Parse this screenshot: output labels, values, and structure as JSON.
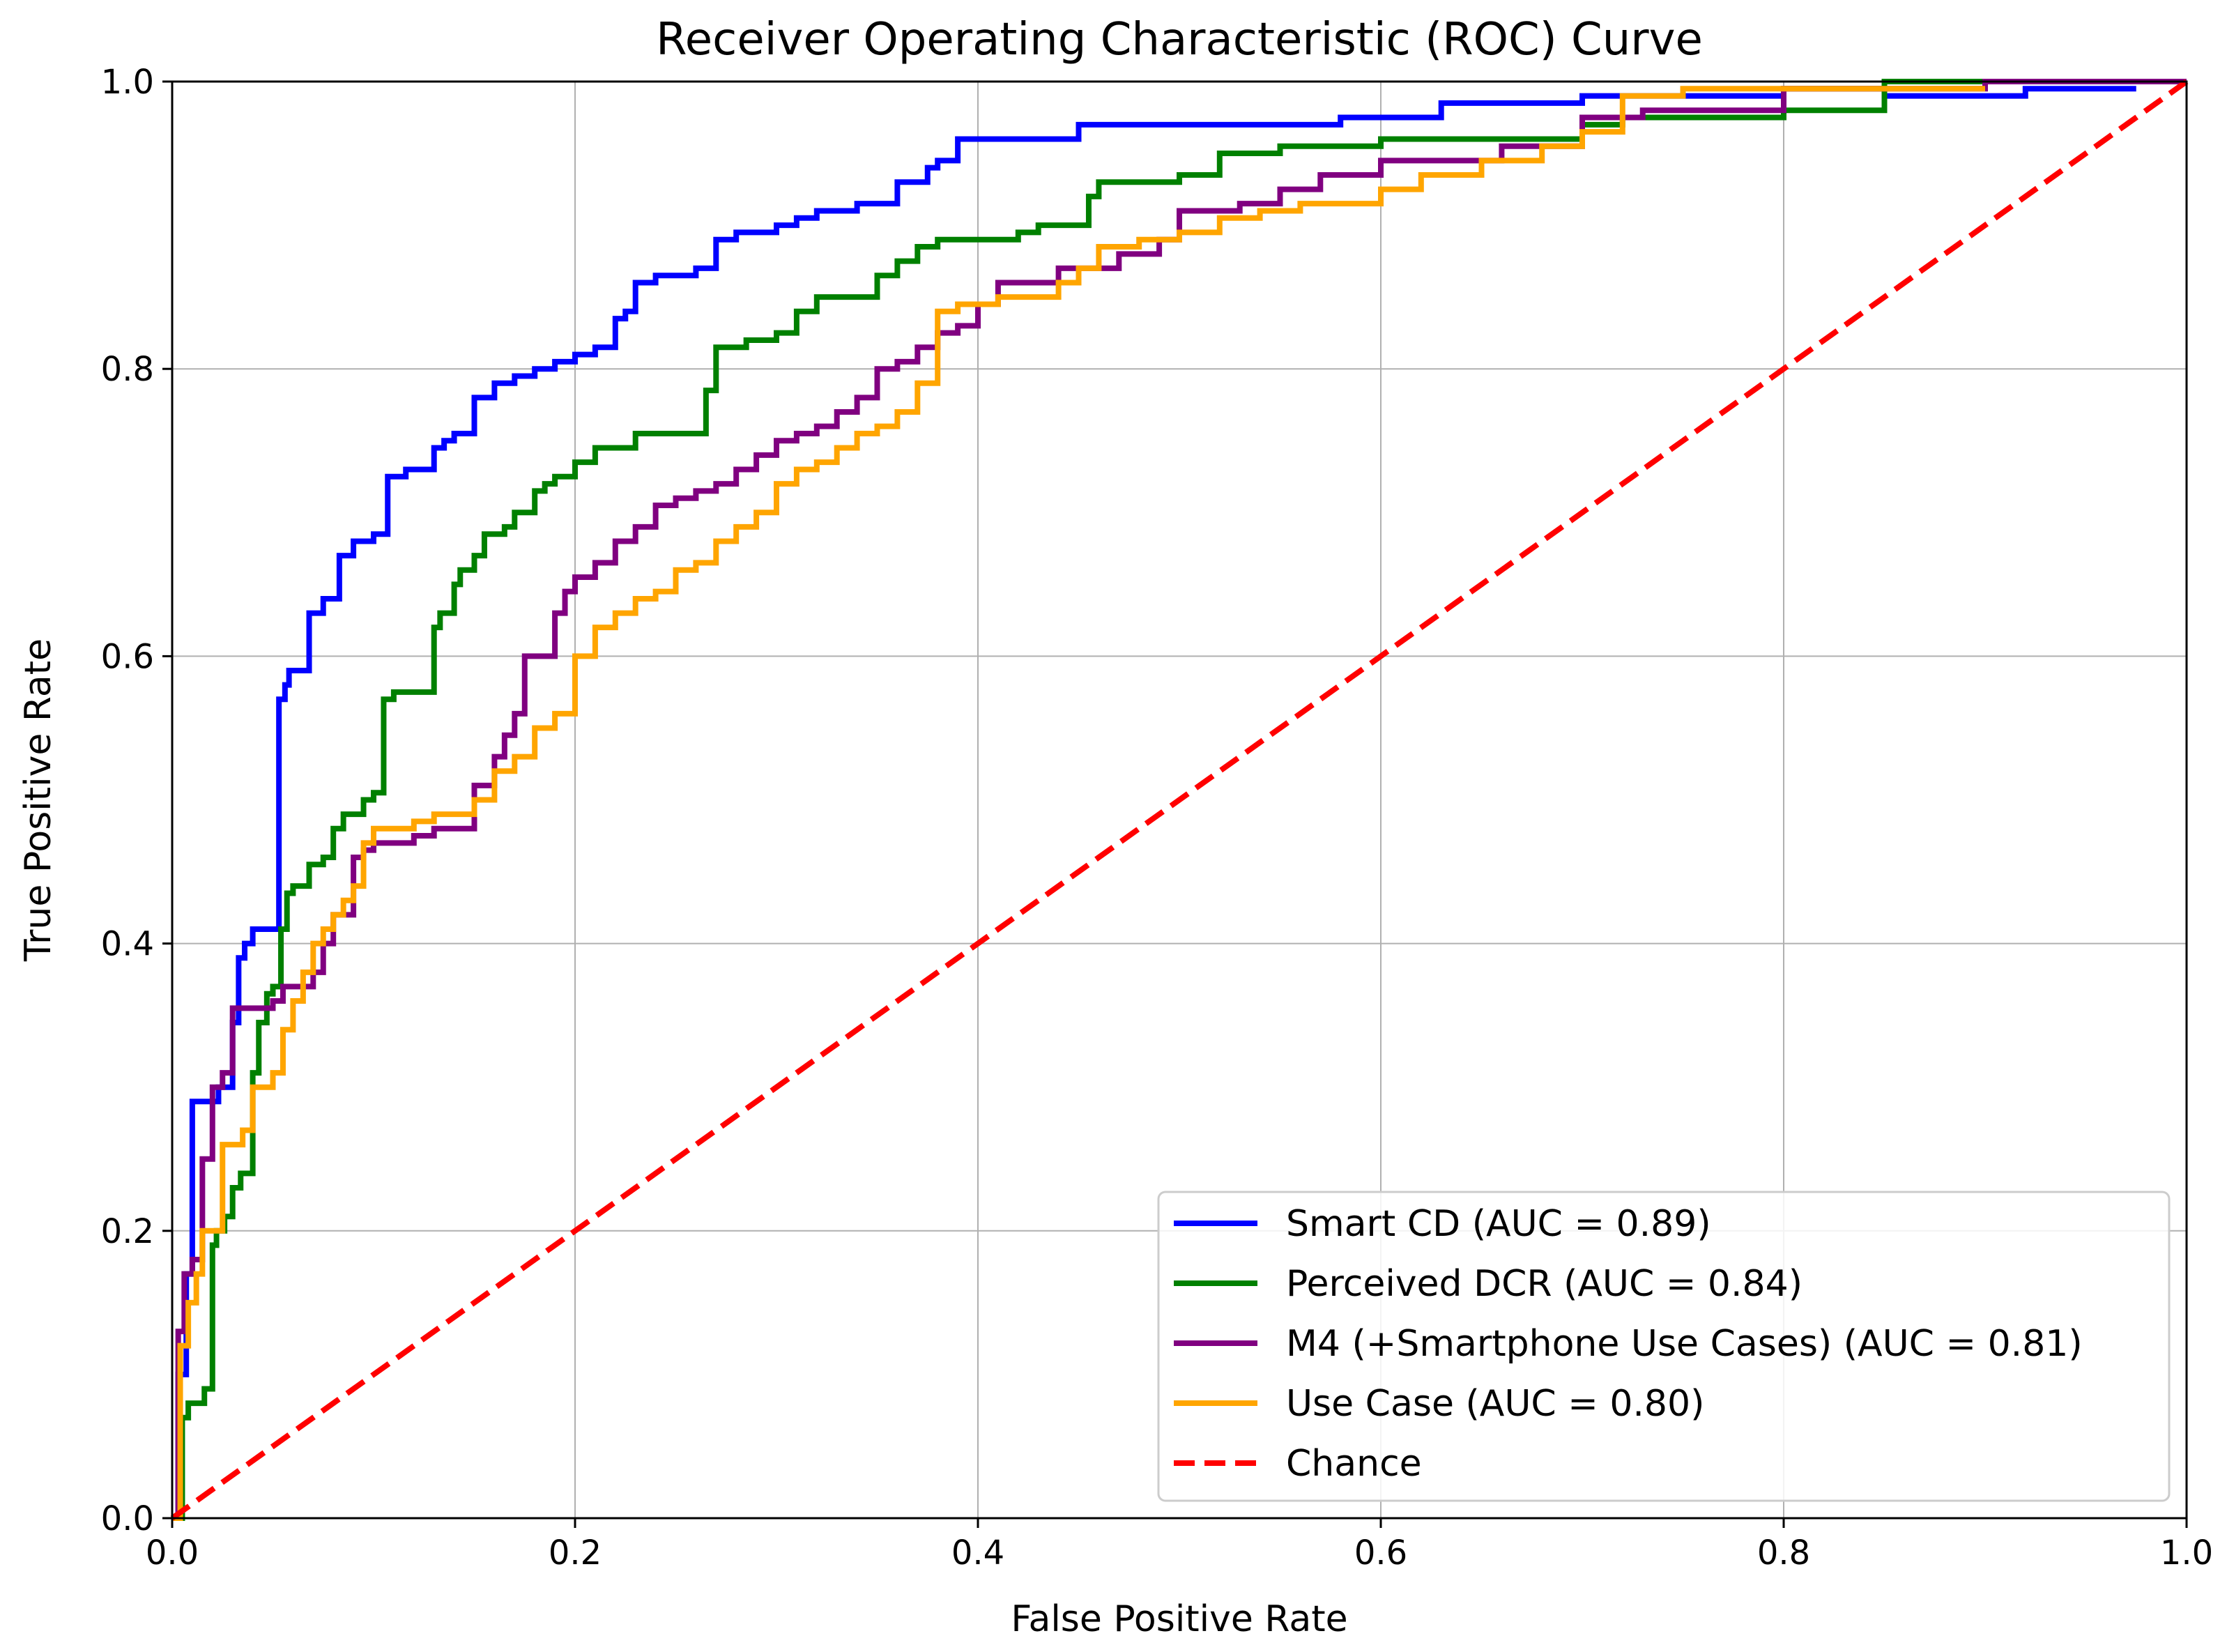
{
  "chart_data": {
    "type": "line",
    "title": "Receiver Operating Characteristic (ROC) Curve",
    "xlabel": "False Positive Rate",
    "ylabel": "True Positive Rate",
    "xlim": [
      0.0,
      1.0
    ],
    "ylim": [
      0.0,
      1.0
    ],
    "xticks": [
      0.0,
      0.2,
      0.4,
      0.6,
      0.8,
      1.0
    ],
    "xtick_labels": [
      "0.0",
      "0.2",
      "0.4",
      "0.6",
      "0.8",
      "1.0"
    ],
    "yticks": [
      0.0,
      0.2,
      0.4,
      0.6,
      0.8,
      1.0
    ],
    "ytick_labels": [
      "0.0",
      "0.2",
      "0.4",
      "0.6",
      "0.8",
      "1.0"
    ],
    "grid": true,
    "legend_position": "lower-right",
    "series": [
      {
        "name": "Smart CD",
        "label": "Smart CD (AUC = 0.89)",
        "auc": 0.89,
        "color": "#0000ff",
        "dash": "solid",
        "x": [
          0.0,
          0.003,
          0.007,
          0.01,
          0.01,
          0.02,
          0.023,
          0.026,
          0.03,
          0.033,
          0.036,
          0.04,
          0.043,
          0.046,
          0.05,
          0.053,
          0.053,
          0.056,
          0.058,
          0.063,
          0.068,
          0.07,
          0.073,
          0.075,
          0.083,
          0.088,
          0.09,
          0.092,
          0.1,
          0.107,
          0.11,
          0.113,
          0.116,
          0.12,
          0.13,
          0.135,
          0.14,
          0.15,
          0.16,
          0.17,
          0.18,
          0.19,
          0.2,
          0.21,
          0.22,
          0.225,
          0.23,
          0.24,
          0.25,
          0.26,
          0.27,
          0.28,
          0.3,
          0.31,
          0.32,
          0.34,
          0.36,
          0.375,
          0.38,
          0.39,
          0.4,
          0.43,
          0.45,
          0.48,
          0.5,
          0.58,
          0.6,
          0.63,
          0.7,
          0.75,
          0.8,
          0.85,
          0.9,
          0.92,
          0.975
        ],
        "y": [
          0.0,
          0.1,
          0.17,
          0.18,
          0.29,
          0.29,
          0.3,
          0.3,
          0.345,
          0.39,
          0.4,
          0.41,
          0.41,
          0.41,
          0.41,
          0.56,
          0.57,
          0.58,
          0.59,
          0.59,
          0.63,
          0.63,
          0.63,
          0.64,
          0.67,
          0.67,
          0.68,
          0.68,
          0.685,
          0.725,
          0.725,
          0.725,
          0.73,
          0.73,
          0.745,
          0.75,
          0.755,
          0.78,
          0.79,
          0.795,
          0.8,
          0.805,
          0.81,
          0.815,
          0.835,
          0.84,
          0.86,
          0.865,
          0.865,
          0.87,
          0.89,
          0.895,
          0.9,
          0.905,
          0.91,
          0.915,
          0.93,
          0.94,
          0.945,
          0.96,
          0.96,
          0.96,
          0.97,
          0.97,
          0.97,
          0.975,
          0.975,
          0.985,
          0.99,
          0.99,
          0.995,
          0.99,
          0.99,
          0.995,
          0.995
        ]
      },
      {
        "name": "Perceived DCR",
        "label": "Perceived DCR (AUC = 0.84)",
        "auc": 0.84,
        "color": "#008000",
        "dash": "solid",
        "x": [
          0.0,
          0.005,
          0.008,
          0.012,
          0.016,
          0.02,
          0.022,
          0.026,
          0.03,
          0.034,
          0.04,
          0.043,
          0.047,
          0.05,
          0.054,
          0.057,
          0.06,
          0.068,
          0.075,
          0.08,
          0.085,
          0.095,
          0.1,
          0.105,
          0.11,
          0.12,
          0.13,
          0.133,
          0.14,
          0.143,
          0.15,
          0.155,
          0.16,
          0.165,
          0.17,
          0.18,
          0.185,
          0.19,
          0.2,
          0.21,
          0.22,
          0.23,
          0.25,
          0.26,
          0.265,
          0.27,
          0.285,
          0.3,
          0.31,
          0.32,
          0.33,
          0.35,
          0.36,
          0.37,
          0.38,
          0.39,
          0.4,
          0.42,
          0.43,
          0.45,
          0.455,
          0.46,
          0.48,
          0.5,
          0.52,
          0.55,
          0.6,
          0.65,
          0.7,
          0.72,
          0.75,
          0.8,
          0.85,
          0.95
        ],
        "y": [
          0.0,
          0.07,
          0.08,
          0.08,
          0.09,
          0.19,
          0.2,
          0.21,
          0.23,
          0.24,
          0.31,
          0.345,
          0.365,
          0.37,
          0.41,
          0.435,
          0.44,
          0.455,
          0.46,
          0.48,
          0.49,
          0.5,
          0.505,
          0.57,
          0.575,
          0.575,
          0.62,
          0.63,
          0.65,
          0.66,
          0.67,
          0.685,
          0.685,
          0.69,
          0.7,
          0.715,
          0.72,
          0.725,
          0.735,
          0.745,
          0.745,
          0.755,
          0.755,
          0.755,
          0.785,
          0.815,
          0.82,
          0.825,
          0.84,
          0.85,
          0.85,
          0.865,
          0.875,
          0.885,
          0.89,
          0.89,
          0.89,
          0.895,
          0.9,
          0.9,
          0.92,
          0.93,
          0.93,
          0.935,
          0.95,
          0.955,
          0.96,
          0.96,
          0.97,
          0.975,
          0.975,
          0.98,
          1.0,
          1.0
        ]
      },
      {
        "name": "M4 (+Smartphone Use Cases)",
        "label": "M4 (+Smartphone Use Cases) (AUC = 0.81)",
        "auc": 0.81,
        "color": "#800080",
        "dash": "solid",
        "x": [
          0.0,
          0.003,
          0.006,
          0.01,
          0.015,
          0.02,
          0.025,
          0.03,
          0.035,
          0.04,
          0.045,
          0.05,
          0.055,
          0.06,
          0.07,
          0.075,
          0.08,
          0.085,
          0.09,
          0.095,
          0.1,
          0.11,
          0.12,
          0.13,
          0.15,
          0.16,
          0.165,
          0.17,
          0.175,
          0.18,
          0.19,
          0.195,
          0.2,
          0.21,
          0.22,
          0.23,
          0.24,
          0.25,
          0.26,
          0.27,
          0.28,
          0.29,
          0.3,
          0.31,
          0.32,
          0.33,
          0.34,
          0.35,
          0.36,
          0.37,
          0.38,
          0.39,
          0.4,
          0.41,
          0.43,
          0.44,
          0.46,
          0.47,
          0.49,
          0.5,
          0.53,
          0.55,
          0.57,
          0.6,
          0.65,
          0.66,
          0.7,
          0.73,
          0.8,
          0.9,
          1.0
        ],
        "y": [
          0.0,
          0.13,
          0.17,
          0.18,
          0.25,
          0.3,
          0.31,
          0.355,
          0.355,
          0.355,
          0.355,
          0.36,
          0.37,
          0.37,
          0.38,
          0.4,
          0.42,
          0.42,
          0.46,
          0.465,
          0.47,
          0.47,
          0.475,
          0.48,
          0.51,
          0.53,
          0.545,
          0.56,
          0.6,
          0.6,
          0.63,
          0.645,
          0.655,
          0.665,
          0.68,
          0.69,
          0.705,
          0.71,
          0.715,
          0.72,
          0.73,
          0.74,
          0.75,
          0.755,
          0.76,
          0.77,
          0.78,
          0.8,
          0.805,
          0.815,
          0.825,
          0.83,
          0.845,
          0.86,
          0.86,
          0.87,
          0.87,
          0.88,
          0.89,
          0.91,
          0.915,
          0.925,
          0.935,
          0.945,
          0.945,
          0.955,
          0.975,
          0.98,
          0.995,
          1.0,
          1.0
        ]
      },
      {
        "name": "Use Case",
        "label": "Use Case (AUC = 0.80)",
        "auc": 0.8,
        "color": "#ffa500",
        "dash": "solid",
        "x": [
          0.0,
          0.004,
          0.008,
          0.012,
          0.015,
          0.02,
          0.025,
          0.03,
          0.035,
          0.04,
          0.045,
          0.05,
          0.055,
          0.06,
          0.065,
          0.07,
          0.075,
          0.08,
          0.085,
          0.09,
          0.095,
          0.1,
          0.11,
          0.12,
          0.13,
          0.14,
          0.15,
          0.16,
          0.17,
          0.18,
          0.19,
          0.2,
          0.21,
          0.22,
          0.23,
          0.24,
          0.25,
          0.26,
          0.27,
          0.28,
          0.29,
          0.3,
          0.31,
          0.32,
          0.33,
          0.34,
          0.35,
          0.36,
          0.37,
          0.38,
          0.39,
          0.4,
          0.41,
          0.42,
          0.44,
          0.45,
          0.46,
          0.48,
          0.5,
          0.52,
          0.54,
          0.56,
          0.6,
          0.62,
          0.65,
          0.68,
          0.7,
          0.72,
          0.75,
          0.8,
          0.85,
          0.9
        ],
        "y": [
          0.0,
          0.12,
          0.15,
          0.17,
          0.2,
          0.2,
          0.26,
          0.26,
          0.27,
          0.3,
          0.3,
          0.31,
          0.34,
          0.36,
          0.38,
          0.4,
          0.41,
          0.42,
          0.43,
          0.44,
          0.47,
          0.48,
          0.48,
          0.485,
          0.49,
          0.49,
          0.5,
          0.52,
          0.53,
          0.55,
          0.56,
          0.6,
          0.62,
          0.63,
          0.64,
          0.645,
          0.66,
          0.665,
          0.68,
          0.69,
          0.7,
          0.72,
          0.73,
          0.735,
          0.745,
          0.755,
          0.76,
          0.77,
          0.79,
          0.84,
          0.845,
          0.845,
          0.85,
          0.85,
          0.86,
          0.87,
          0.885,
          0.89,
          0.895,
          0.905,
          0.91,
          0.915,
          0.925,
          0.935,
          0.945,
          0.955,
          0.965,
          0.99,
          0.995,
          0.995,
          0.995,
          0.995
        ]
      },
      {
        "name": "Chance",
        "label": "Chance",
        "color": "#ff0000",
        "dash": "dashed",
        "x": [
          0.0,
          1.0
        ],
        "y": [
          0.0,
          1.0
        ]
      }
    ]
  }
}
